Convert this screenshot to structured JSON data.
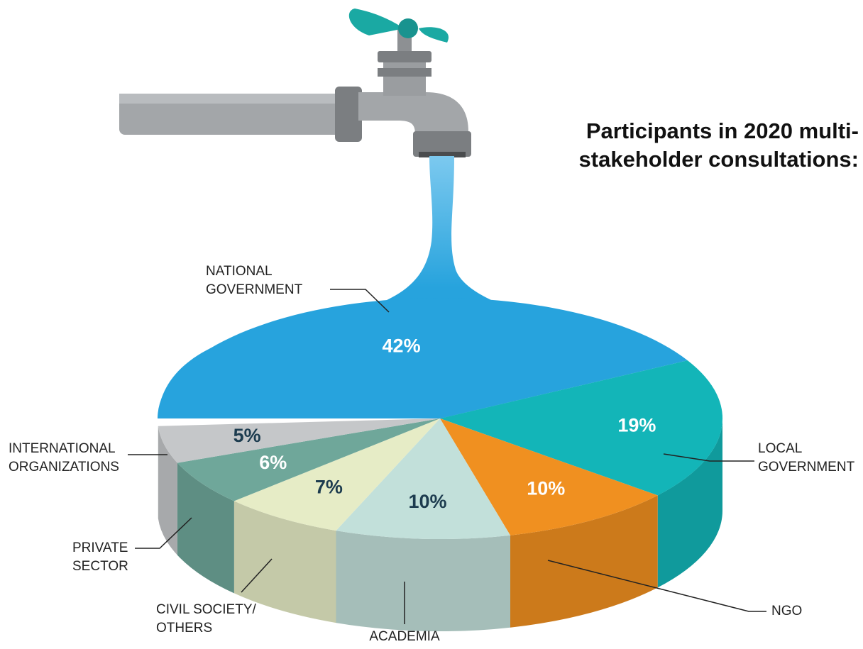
{
  "chart_data": {
    "type": "pie",
    "title": "Participants in 2020 multi-stakeholder consultations:",
    "categories": [
      "NATIONAL GOVERNMENT",
      "LOCAL GOVERNMENT",
      "NGO",
      "ACADEMIA",
      "CIVIL SOCIETY/ OTHERS",
      "PRIVATE SECTOR",
      "INTERNATIONAL ORGANIZATIONS"
    ],
    "values": [
      42,
      19,
      10,
      10,
      7,
      6,
      5
    ],
    "value_labels": [
      "42%",
      "19%",
      "10%",
      "10%",
      "7%",
      "6%",
      "5%"
    ],
    "colors": [
      "#27a3dd",
      "#13b5b8",
      "#f09020",
      "#c2e0da",
      "#e6ecc6",
      "#6fa79a",
      "#c5c7c9"
    ],
    "value_label_colors": [
      "#ffffff",
      "#ffffff",
      "#ffffff",
      "#1d3c4f",
      "#1d3c4f",
      "#ffffff",
      "#1d3c4f"
    ]
  }
}
